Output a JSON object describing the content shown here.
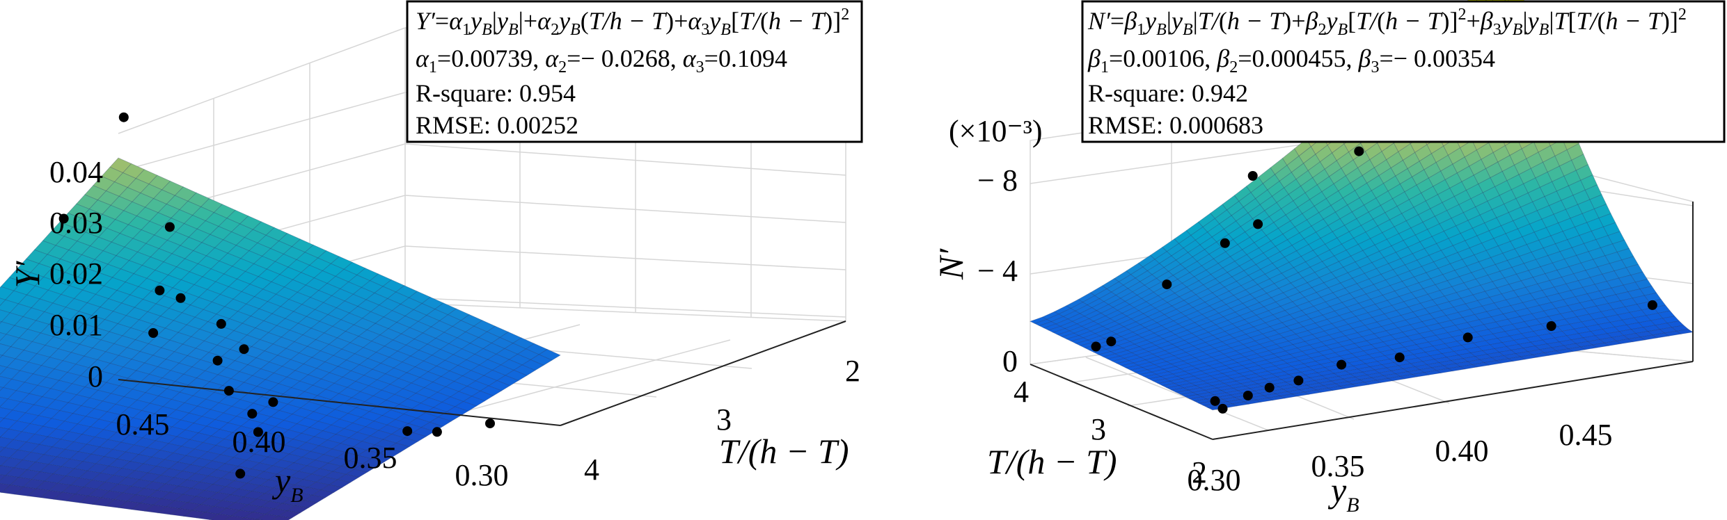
{
  "chart_data": [
    {
      "type": "surface",
      "panel": "left",
      "zlabel": "Y′",
      "xlabel": "y_B",
      "ylabel": "T/(h − T)",
      "x_ticks": [
        "0.45",
        "0.40",
        "0.35",
        "0.30"
      ],
      "y_ticks": [
        "2",
        "3",
        "4"
      ],
      "z_ticks": [
        "0",
        "0.01",
        "0.02",
        "0.03",
        "0.04"
      ],
      "xlim": [
        0.28,
        0.47
      ],
      "ylim": [
        1.8,
        4.2
      ],
      "zlim": [
        -0.002,
        0.045
      ],
      "colormap": "parula",
      "model": {
        "a1": 0.00739,
        "a2": -0.0268,
        "a3": 0.1094
      },
      "fit_box": {
        "equation_lhs": "Y′",
        "coef_line": [
          "α",
          "1",
          "=0.00739, ",
          "α",
          "2",
          "=− 0.0268, ",
          "α",
          "3",
          "=0.1094"
        ],
        "rsquare": "R-square: 0.954",
        "rmse": "RMSE: 0.00252"
      },
      "points": [
        {
          "x": 0.46,
          "y": 4.05,
          "z": 0.0443
        },
        {
          "x": 0.45,
          "y": 3.35,
          "z": 0.0326
        },
        {
          "x": 0.43,
          "y": 3.85,
          "z": 0.0283
        },
        {
          "x": 0.41,
          "y": 3.55,
          "z": 0.0192
        },
        {
          "x": 0.39,
          "y": 3.5,
          "z": 0.016
        },
        {
          "x": 0.37,
          "y": 3.3,
          "z": 0.014
        },
        {
          "x": 0.36,
          "y": 3.35,
          "z": 0.005
        },
        {
          "x": 0.35,
          "y": 2.2,
          "z": 0.033
        },
        {
          "x": 0.34,
          "y": 1.95,
          "z": 0.028
        },
        {
          "x": 0.32,
          "y": 2.1,
          "z": 0.023
        },
        {
          "x": 0.31,
          "y": 2.0,
          "z": 0.019
        },
        {
          "x": 0.3,
          "y": 2.0,
          "z": 0.0155
        },
        {
          "x": 0.3,
          "y": 2.05,
          "z": 0.012
        },
        {
          "x": 0.3,
          "y": 1.9,
          "z": 0.006
        },
        {
          "x": 0.31,
          "y": 3.5,
          "z": 0.001
        },
        {
          "x": 0.31,
          "y": 3.75,
          "z": -0.001
        },
        {
          "x": 0.3,
          "y": 4.0,
          "z": -0.001
        }
      ]
    },
    {
      "type": "surface",
      "panel": "right",
      "zlabel": "N′",
      "xlabel": "y_B",
      "ylabel": "T/(h − T)",
      "scale_note": "(×10⁻³)",
      "x_ticks": [
        "0.30",
        "0.35",
        "0.40",
        "0.45"
      ],
      "y_ticks": [
        "2",
        "3",
        "4"
      ],
      "z_ticks": [
        "0",
        "− 4",
        "− 8"
      ],
      "xlim": [
        0.28,
        0.47
      ],
      "ylim": [
        1.8,
        4.2
      ],
      "zlim": [
        -0.01,
        0.0005
      ],
      "colormap": "parula",
      "model": {
        "b1": 0.00106,
        "b2": 0.000455,
        "b3": -0.00354
      },
      "fit_box": {
        "equation_lhs": "N′",
        "coef_line": [
          "β",
          "1",
          "=0.00106, ",
          "β",
          "2",
          "=0.000455, ",
          "β",
          "3",
          "=− 0.00354"
        ],
        "rsquare": "R-square: 0.942",
        "rmse": "RMSE: 0.000683"
      },
      "points": [
        {
          "x": 0.3,
          "y": 4.0,
          "z": -0.0002
        },
        {
          "x": 0.3,
          "y": 3.8,
          "z": -0.0007
        },
        {
          "x": 0.31,
          "y": 3.4,
          "z": -0.0036
        },
        {
          "x": 0.33,
          "y": 3.3,
          "z": -0.0052
        },
        {
          "x": 0.34,
          "y": 3.2,
          "z": -0.006
        },
        {
          "x": 0.35,
          "y": 3.6,
          "z": -0.0074
        },
        {
          "x": 0.38,
          "y": 3.2,
          "z": -0.0085
        },
        {
          "x": 0.29,
          "y": 2.0,
          "z": -0.0004
        },
        {
          "x": 0.29,
          "y": 2.1,
          "z": -0.0006
        },
        {
          "x": 0.3,
          "y": 2.0,
          "z": -0.0008
        },
        {
          "x": 0.31,
          "y": 2.05,
          "z": -0.0009
        },
        {
          "x": 0.32,
          "y": 2.0,
          "z": -0.0011
        },
        {
          "x": 0.34,
          "y": 2.1,
          "z": -0.0013
        },
        {
          "x": 0.36,
          "y": 2.0,
          "z": -0.0014
        },
        {
          "x": 0.39,
          "y": 2.1,
          "z": -0.0016
        },
        {
          "x": 0.42,
          "y": 2.0,
          "z": -0.0017
        },
        {
          "x": 0.46,
          "y": 2.0,
          "z": -0.0019
        }
      ]
    }
  ]
}
